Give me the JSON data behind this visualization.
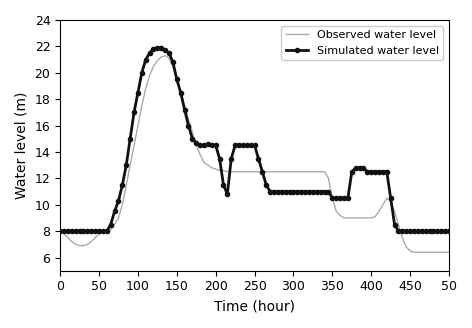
{
  "title": "",
  "xlabel": "Time (hour)",
  "ylabel": "Water level (m)",
  "xlim": [
    0,
    500
  ],
  "ylim": [
    5,
    24
  ],
  "xticks": [
    0,
    50,
    100,
    150,
    200,
    250,
    300,
    350,
    400,
    450,
    500
  ],
  "yticks": [
    6,
    8,
    10,
    12,
    14,
    16,
    18,
    20,
    22,
    24
  ],
  "legend_observed": "Observed water level",
  "legend_simulated": "Simulated water level",
  "obs_color": "#aaaaaa",
  "sim_color": "#111111",
  "obs_lw": 1.0,
  "sim_lw": 2.0,
  "observed_x": [
    0,
    5,
    10,
    15,
    20,
    25,
    30,
    35,
    40,
    45,
    50,
    55,
    60,
    65,
    70,
    75,
    80,
    85,
    90,
    95,
    100,
    105,
    110,
    115,
    120,
    125,
    130,
    135,
    140,
    145,
    150,
    155,
    160,
    165,
    170,
    175,
    180,
    185,
    190,
    195,
    200,
    205,
    210,
    215,
    220,
    225,
    230,
    235,
    240,
    245,
    250,
    255,
    260,
    265,
    270,
    275,
    280,
    285,
    290,
    295,
    300,
    305,
    310,
    315,
    320,
    325,
    330,
    335,
    340,
    345,
    350,
    355,
    360,
    365,
    370,
    375,
    380,
    385,
    390,
    395,
    400,
    405,
    410,
    415,
    420,
    425,
    430,
    435,
    440,
    445,
    450,
    455,
    460,
    465,
    470,
    475,
    480,
    485,
    490,
    495,
    500
  ],
  "observed_y": [
    8.0,
    7.8,
    7.5,
    7.2,
    7.0,
    6.9,
    6.9,
    7.0,
    7.2,
    7.5,
    7.8,
    7.9,
    8.0,
    8.1,
    8.5,
    9.0,
    10.0,
    11.5,
    13.0,
    14.5,
    16.0,
    17.5,
    18.8,
    19.8,
    20.5,
    20.9,
    21.2,
    21.3,
    21.1,
    20.5,
    19.5,
    18.5,
    17.5,
    16.5,
    15.5,
    14.5,
    13.8,
    13.2,
    13.0,
    12.8,
    12.7,
    12.6,
    12.6,
    12.5,
    12.5,
    12.5,
    12.5,
    12.5,
    12.5,
    12.5,
    12.5,
    12.5,
    12.5,
    12.5,
    12.5,
    12.5,
    12.5,
    12.5,
    12.5,
    12.5,
    12.5,
    12.5,
    12.5,
    12.5,
    12.5,
    12.5,
    12.5,
    12.5,
    12.5,
    12.0,
    10.5,
    9.5,
    9.2,
    9.0,
    9.0,
    9.0,
    9.0,
    9.0,
    9.0,
    9.0,
    9.0,
    9.1,
    9.5,
    10.0,
    10.5,
    10.2,
    9.5,
    8.5,
    7.5,
    6.8,
    6.5,
    6.4,
    6.4,
    6.4,
    6.4,
    6.4,
    6.4,
    6.4,
    6.4,
    6.4,
    6.4
  ],
  "simulated_x": [
    0,
    5,
    10,
    15,
    20,
    25,
    30,
    35,
    40,
    45,
    50,
    55,
    60,
    65,
    70,
    75,
    80,
    85,
    90,
    95,
    100,
    105,
    110,
    115,
    120,
    125,
    130,
    135,
    140,
    145,
    150,
    155,
    160,
    165,
    170,
    175,
    180,
    185,
    190,
    195,
    200,
    205,
    210,
    215,
    220,
    225,
    230,
    235,
    240,
    245,
    250,
    255,
    260,
    265,
    270,
    275,
    280,
    285,
    290,
    295,
    300,
    305,
    310,
    315,
    320,
    325,
    330,
    335,
    340,
    345,
    350,
    355,
    360,
    365,
    370,
    375,
    380,
    385,
    390,
    395,
    400,
    405,
    410,
    415,
    420,
    425,
    430,
    435,
    440,
    445,
    450,
    455,
    460,
    465,
    470,
    475,
    480,
    485,
    490,
    495,
    500
  ],
  "simulated_y": [
    8.0,
    8.0,
    8.0,
    8.0,
    8.0,
    8.0,
    8.0,
    8.0,
    8.0,
    8.0,
    8.0,
    8.0,
    8.0,
    8.5,
    9.5,
    10.3,
    11.5,
    13.0,
    15.0,
    17.0,
    18.5,
    20.0,
    21.0,
    21.5,
    21.8,
    21.9,
    21.9,
    21.7,
    21.5,
    20.8,
    19.5,
    18.5,
    17.2,
    16.0,
    15.0,
    14.7,
    14.5,
    14.5,
    14.6,
    14.5,
    14.5,
    13.5,
    11.5,
    10.8,
    13.5,
    14.5,
    14.5,
    14.5,
    14.5,
    14.5,
    14.5,
    13.5,
    12.5,
    11.5,
    11.0,
    11.0,
    11.0,
    11.0,
    11.0,
    11.0,
    11.0,
    11.0,
    11.0,
    11.0,
    11.0,
    11.0,
    11.0,
    11.0,
    11.0,
    11.0,
    10.5,
    10.5,
    10.5,
    10.5,
    10.5,
    12.5,
    12.8,
    12.8,
    12.8,
    12.5,
    12.5,
    12.5,
    12.5,
    12.5,
    12.5,
    10.5,
    8.5,
    8.0,
    8.0,
    8.0,
    8.0,
    8.0,
    8.0,
    8.0,
    8.0,
    8.0,
    8.0,
    8.0,
    8.0,
    8.0,
    8.0
  ]
}
